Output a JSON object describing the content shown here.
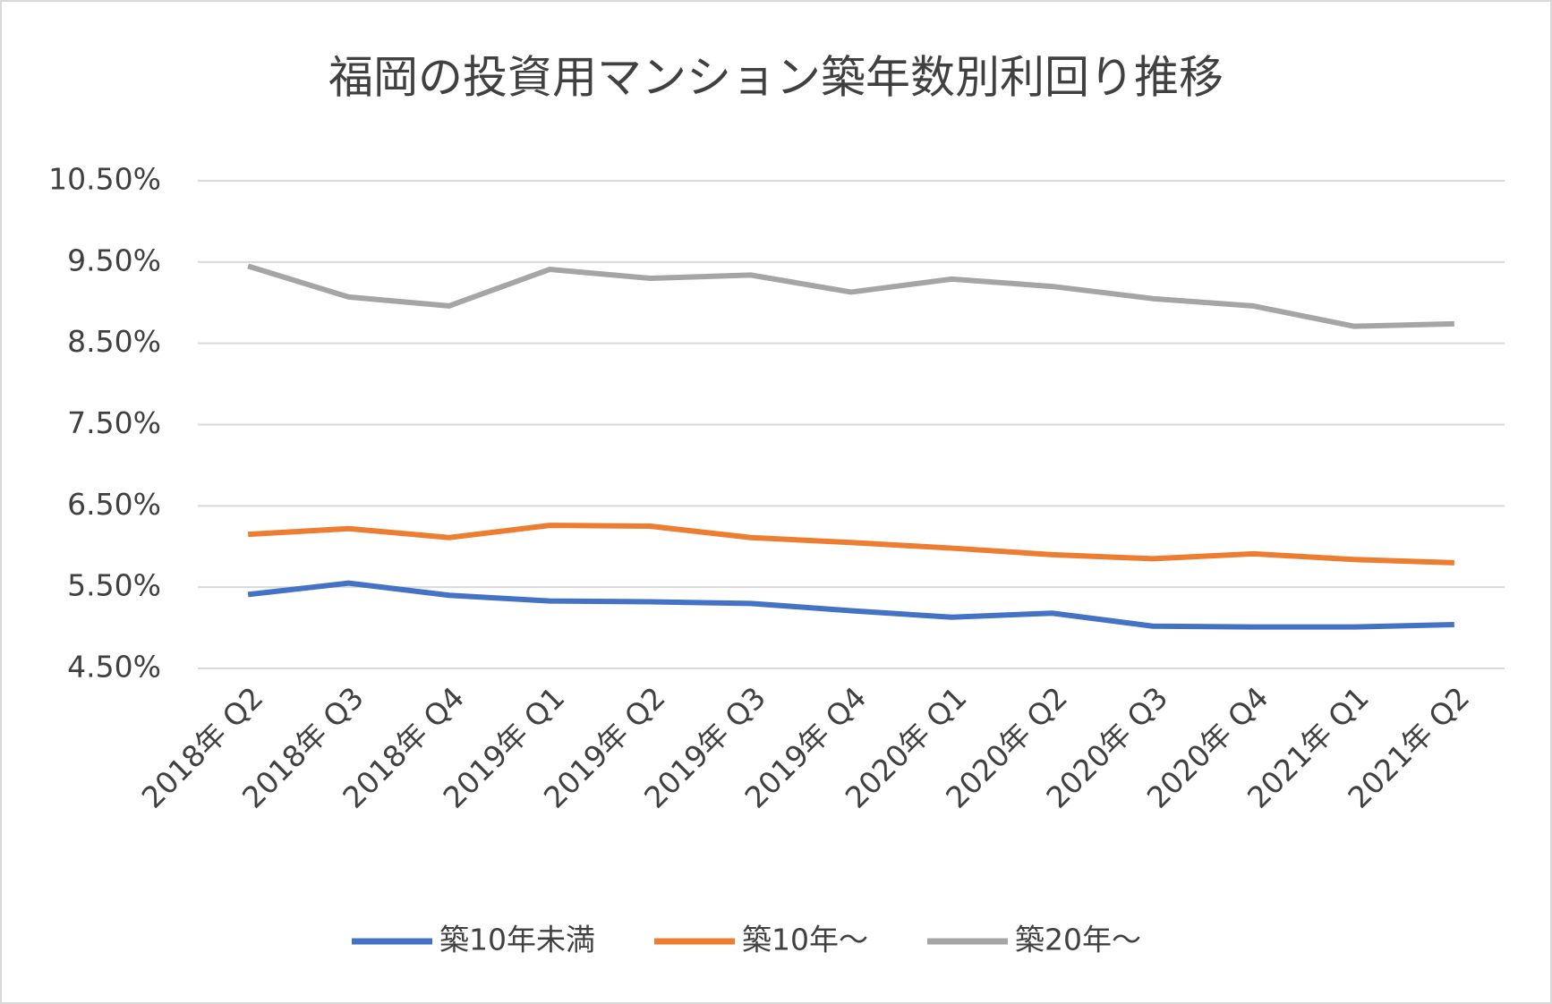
{
  "chart_data": {
    "type": "line",
    "title": "福岡の投資用マンション築年数別利回り推移",
    "categories": [
      "2018年 Q2",
      "2018年 Q3",
      "2018年 Q4",
      "2019年 Q1",
      "2019年 Q2",
      "2019年 Q3",
      "2019年 Q4",
      "2020年 Q1",
      "2020年 Q2",
      "2020年 Q3",
      "2020年 Q4",
      "2021年 Q1",
      "2021年 Q2"
    ],
    "series": [
      {
        "name": "築10年未満",
        "color": "#4472c4",
        "values": [
          5.41,
          5.55,
          5.4,
          5.33,
          5.32,
          5.3,
          5.21,
          5.13,
          5.18,
          5.02,
          5.01,
          5.01,
          5.04
        ]
      },
      {
        "name": "築10年～",
        "color": "#ed7d31",
        "values": [
          6.15,
          6.22,
          6.11,
          6.26,
          6.25,
          6.11,
          6.05,
          5.98,
          5.9,
          5.85,
          5.91,
          5.84,
          5.8
        ]
      },
      {
        "name": "築20年～",
        "color": "#a5a5a5",
        "values": [
          9.45,
          9.07,
          8.96,
          9.41,
          9.3,
          9.34,
          9.13,
          9.29,
          9.2,
          9.05,
          8.96,
          8.71,
          8.74
        ]
      }
    ],
    "ylim": [
      4.5,
      10.5
    ],
    "yticks": [
      {
        "value": 4.5,
        "label": "4.50%"
      },
      {
        "value": 5.5,
        "label": "5.50%"
      },
      {
        "value": 6.5,
        "label": "6.50%"
      },
      {
        "value": 7.5,
        "label": "7.50%"
      },
      {
        "value": 8.5,
        "label": "8.50%"
      },
      {
        "value": 9.5,
        "label": "9.50%"
      },
      {
        "value": 10.5,
        "label": "10.50%"
      }
    ],
    "grid": true,
    "legend": "bottom"
  }
}
